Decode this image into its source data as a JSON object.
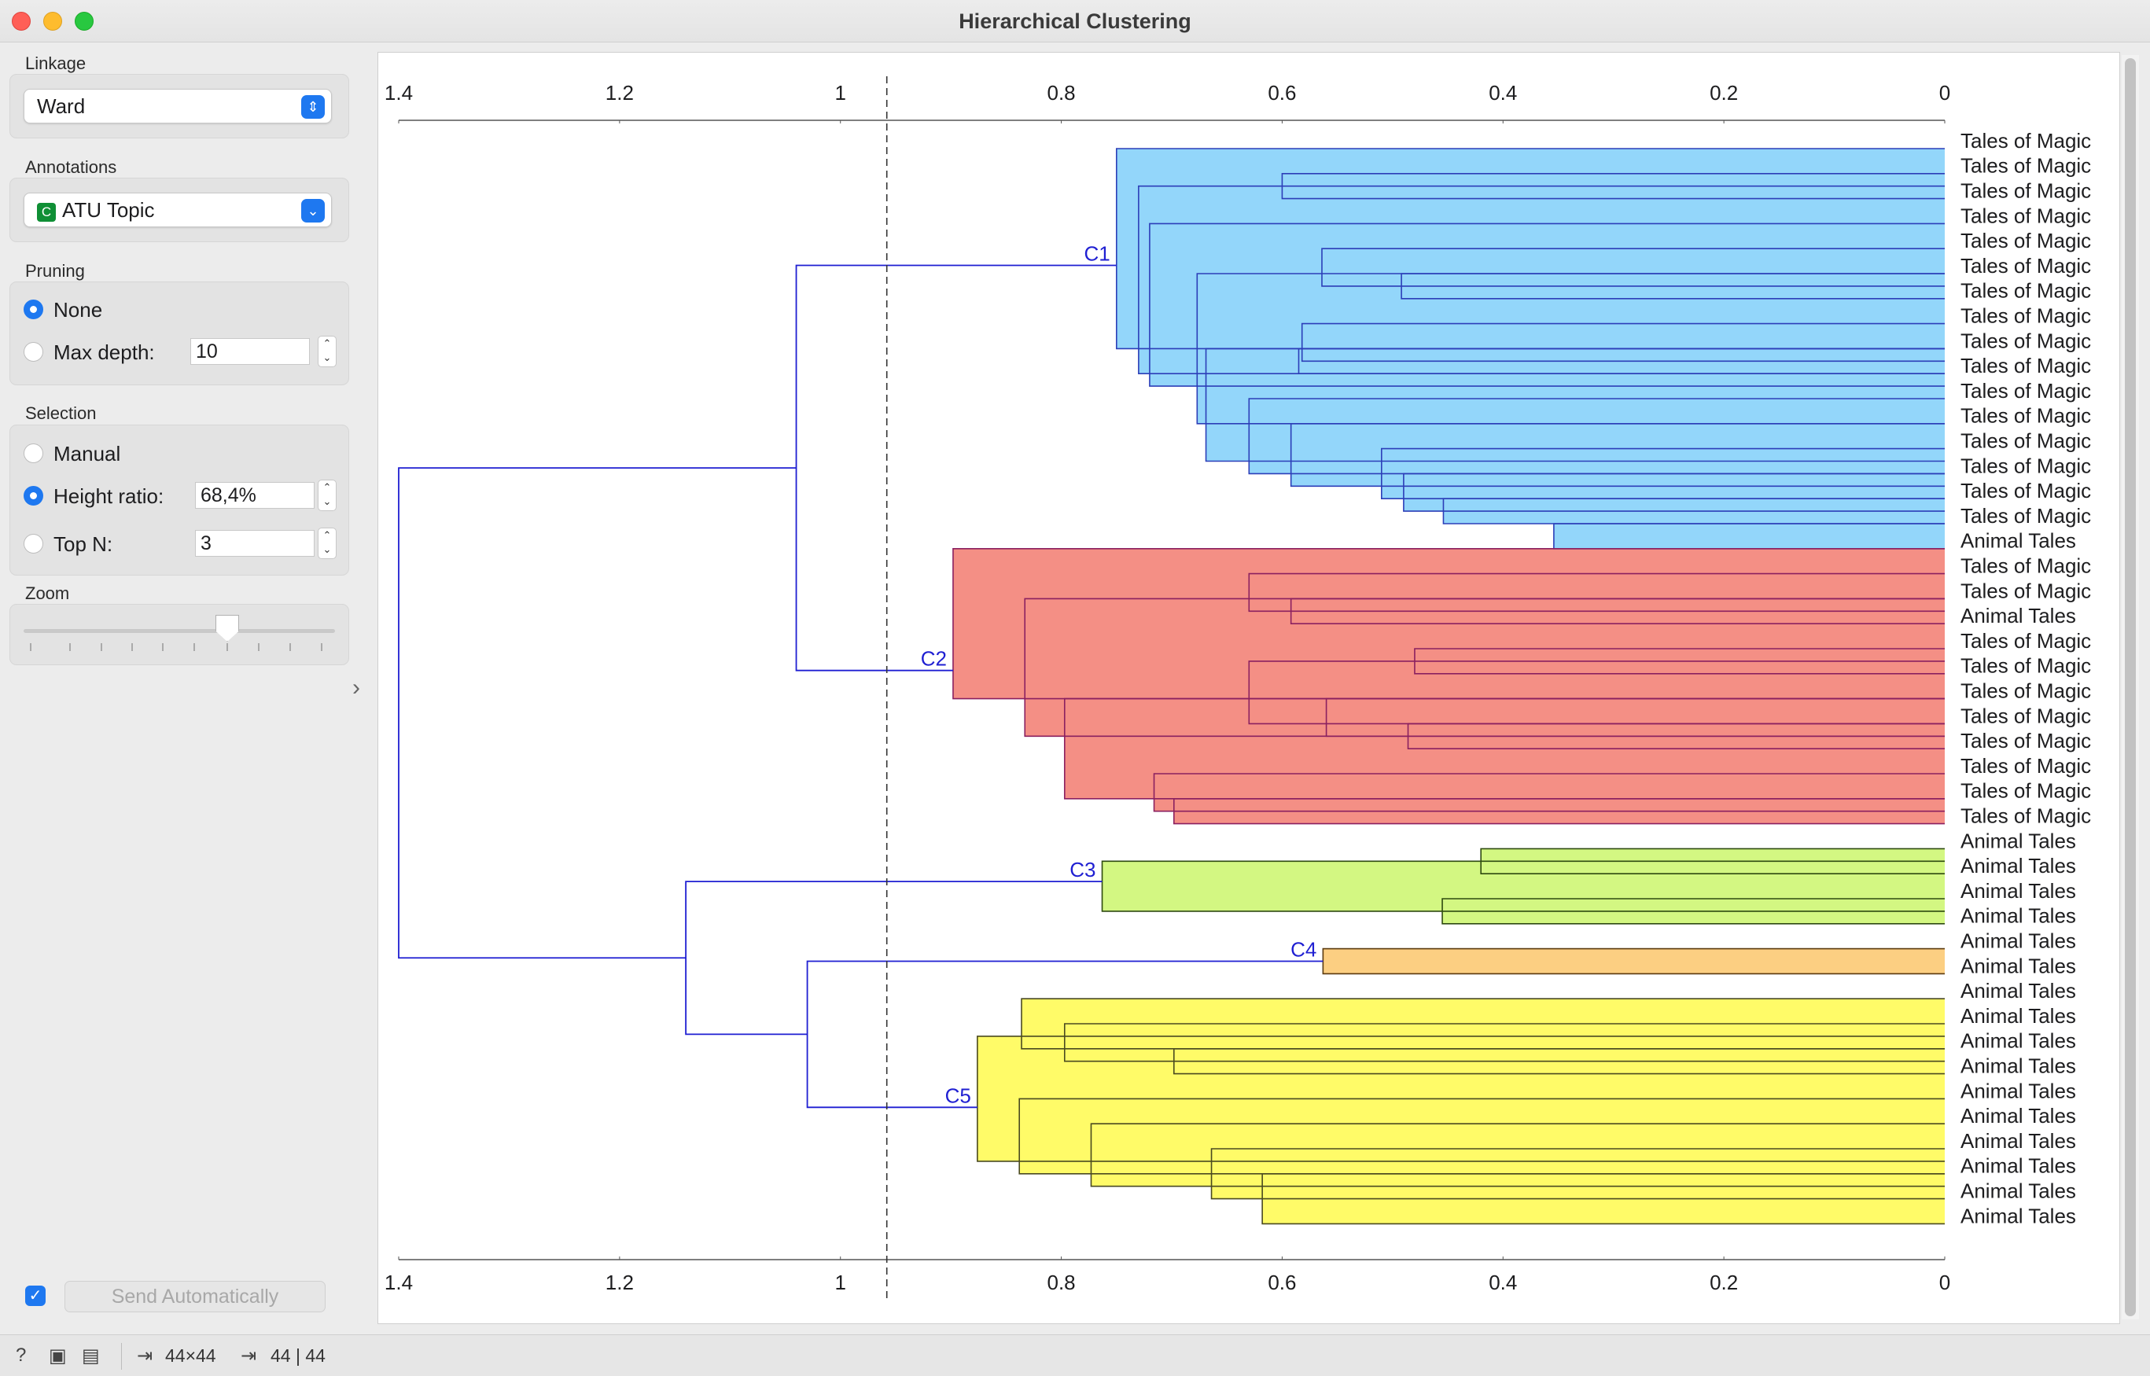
{
  "window": {
    "title": "Hierarchical Clustering"
  },
  "linkage": {
    "label": "Linkage",
    "value": "Ward"
  },
  "annotations": {
    "label": "Annotations",
    "badge": "C",
    "value": "ATU Topic"
  },
  "pruning": {
    "label": "Pruning",
    "none_label": "None",
    "max_depth_label": "Max depth:",
    "max_depth_value": "10",
    "selected": "None"
  },
  "selection": {
    "label": "Selection",
    "manual_label": "Manual",
    "height_ratio_label": "Height ratio:",
    "height_ratio_value": "68,4%",
    "top_n_label": "Top N:",
    "top_n_value": "3",
    "selected": "Height ratio"
  },
  "zoom": {
    "label": "Zoom",
    "value": 0.65
  },
  "send": {
    "label": "Send Automatically",
    "checked": true
  },
  "status": {
    "input_size": "44×44",
    "output_size": "44 | 44"
  },
  "chart_data": {
    "type": "dendrogram",
    "x_axis_ticks": [
      "1.4",
      "1.2",
      "1",
      "0.8",
      "0.6",
      "0.4",
      "0.2",
      "0"
    ],
    "xlim": [
      1.4,
      0
    ],
    "cutoff_height": 0.958,
    "leaves": [
      "Tales of Magic",
      "Tales of Magic",
      "Tales of Magic",
      "Tales of Magic",
      "Tales of Magic",
      "Tales of Magic",
      "Tales of Magic",
      "Tales of Magic",
      "Tales of Magic",
      "Tales of Magic",
      "Tales of Magic",
      "Tales of Magic",
      "Tales of Magic",
      "Tales of Magic",
      "Tales of Magic",
      "Tales of Magic",
      "Animal Tales",
      "Tales of Magic",
      "Tales of Magic",
      "Animal Tales",
      "Tales of Magic",
      "Tales of Magic",
      "Tales of Magic",
      "Tales of Magic",
      "Tales of Magic",
      "Tales of Magic",
      "Tales of Magic",
      "Tales of Magic",
      "Animal Tales",
      "Animal Tales",
      "Animal Tales",
      "Animal Tales",
      "Animal Tales",
      "Animal Tales",
      "Animal Tales",
      "Animal Tales",
      "Animal Tales",
      "Animal Tales",
      "Animal Tales",
      "Animal Tales",
      "Animal Tales",
      "Animal Tales",
      "Animal Tales",
      "Animal Tales"
    ],
    "clusters": [
      {
        "name": "C1",
        "first": 0,
        "last": 15,
        "height": 0.75,
        "color": "#93d6fa",
        "line": "#2c3eb8"
      },
      {
        "name": "C2",
        "first": 16,
        "last": 27,
        "height": 0.898,
        "color": "#f48f85",
        "line": "#8a2060"
      },
      {
        "name": "C3",
        "first": 28,
        "last": 31,
        "height": 0.763,
        "color": "#d3f782",
        "line": "#2e4a10"
      },
      {
        "name": "C4",
        "first": 32,
        "last": 33,
        "height": 0.563,
        "color": "#fccf82",
        "line": "#5a3a10"
      },
      {
        "name": "C5",
        "first": 34,
        "last": 43,
        "height": 0.876,
        "color": "#fffb68",
        "line": "#4a4a20"
      }
    ],
    "merges": [
      {
        "leaves": [
          0,
          15
        ],
        "height": 0.75,
        "top_y": 0,
        "bot": [
          1,
          15
        ],
        "color": "c0"
      },
      {
        "leaves": [
          1,
          2
        ],
        "height": 0.6,
        "color": "c0"
      },
      {
        "leaves": [
          1,
          15
        ],
        "height": 0.73,
        "top": [
          1,
          2
        ],
        "bot": [
          3,
          15
        ],
        "color": "c0"
      },
      {
        "leaves": [
          3,
          15
        ],
        "height": 0.72,
        "top": [
          3,
          3
        ],
        "bot": [
          4,
          15
        ],
        "color": "c0"
      },
      {
        "leaves": [
          4,
          6
        ],
        "height": 0.564,
        "top": [
          4,
          4
        ],
        "bot": [
          5,
          6
        ],
        "color": "c0"
      },
      {
        "leaves": [
          5,
          6
        ],
        "height": 0.492,
        "color": "c0"
      },
      {
        "leaves": [
          4,
          15
        ],
        "height": 0.677,
        "top": [
          4,
          6
        ],
        "bot": [
          7,
          15
        ],
        "color": "c0"
      },
      {
        "leaves": [
          7,
          15
        ],
        "height": 0.669,
        "top": [
          7,
          9
        ],
        "bot": [
          10,
          15
        ],
        "color": "c0"
      },
      {
        "leaves": [
          7,
          9
        ],
        "height": 0.582,
        "top": [
          7,
          7
        ],
        "bot": [
          8,
          9
        ],
        "color": "c0"
      },
      {
        "leaves": [
          8,
          9
        ],
        "height": 0.585,
        "color": "c0"
      },
      {
        "leaves": [
          10,
          15
        ],
        "height": 0.63,
        "top": [
          10,
          10
        ],
        "bot": [
          11,
          15
        ],
        "color": "c0"
      },
      {
        "leaves": [
          11,
          15
        ],
        "height": 0.592,
        "top": [
          11,
          11
        ],
        "bot": [
          12,
          15
        ],
        "color": "c0"
      },
      {
        "leaves": [
          12,
          15
        ],
        "height": 0.51,
        "top": [
          12,
          12
        ],
        "bot": [
          13,
          15
        ],
        "color": "c0"
      },
      {
        "leaves": [
          13,
          15
        ],
        "height": 0.49,
        "top": [
          13,
          13
        ],
        "bot": [
          14,
          15
        ],
        "color": "c0"
      },
      {
        "leaves": [
          14,
          15
        ],
        "height": 0.454,
        "top": [
          14,
          14
        ],
        "bot": [
          15,
          15
        ],
        "color": "c0"
      },
      {
        "leaves": [
          15,
          16
        ],
        "height": 0.354,
        "color": "c0"
      },
      {
        "leaves": [
          16,
          27
        ],
        "height": 0.898,
        "top": [
          16,
          16
        ],
        "bot": [
          17,
          27
        ],
        "color": "c1"
      },
      {
        "leaves": [
          17,
          27
        ],
        "height": 0.833,
        "top": [
          17,
          19
        ],
        "bot": [
          20,
          27
        ],
        "color": "c1"
      },
      {
        "leaves": [
          17,
          19
        ],
        "height": 0.63,
        "top": [
          17,
          17
        ],
        "bot": [
          18,
          19
        ],
        "color": "c1"
      },
      {
        "leaves": [
          18,
          19
        ],
        "height": 0.592,
        "color": "c1"
      },
      {
        "leaves": [
          20,
          27
        ],
        "height": 0.797,
        "top": [
          20,
          24
        ],
        "bot": [
          25,
          27
        ],
        "color": "c1"
      },
      {
        "leaves": [
          20,
          24
        ],
        "height": 0.63,
        "top": [
          20,
          21
        ],
        "bot": [
          22,
          24
        ],
        "color": "c1"
      },
      {
        "leaves": [
          20,
          21
        ],
        "height": 0.48,
        "color": "c1"
      },
      {
        "leaves": [
          22,
          24
        ],
        "height": 0.56,
        "top": [
          22,
          22
        ],
        "bot": [
          23,
          24
        ],
        "color": "c1"
      },
      {
        "leaves": [
          23,
          24
        ],
        "height": 0.486,
        "color": "c1"
      },
      {
        "leaves": [
          25,
          27
        ],
        "height": 0.716,
        "top": [
          25,
          25
        ],
        "bot": [
          26,
          27
        ],
        "color": "c1"
      },
      {
        "leaves": [
          26,
          27
        ],
        "height": 0.698,
        "color": "c1"
      },
      {
        "leaves": [
          28,
          31
        ],
        "height": 0.763,
        "top": [
          28,
          29
        ],
        "bot": [
          30,
          31
        ],
        "color": "c2"
      },
      {
        "leaves": [
          28,
          29
        ],
        "height": 0.42,
        "color": "c2"
      },
      {
        "leaves": [
          30,
          31
        ],
        "height": 0.455,
        "color": "c2"
      },
      {
        "leaves": [
          32,
          33
        ],
        "height": 0.563,
        "color": "c3"
      },
      {
        "leaves": [
          34,
          43
        ],
        "height": 0.876,
        "top": [
          34,
          37
        ],
        "bot": [
          38,
          43
        ],
        "color": "c4"
      },
      {
        "leaves": [
          34,
          37
        ],
        "height": 0.836,
        "top": [
          34,
          34
        ],
        "bot": [
          35,
          37
        ],
        "color": "c4"
      },
      {
        "leaves": [
          35,
          37
        ],
        "height": 0.797,
        "top": [
          35,
          35
        ],
        "bot": [
          36,
          37
        ],
        "color": "c4"
      },
      {
        "leaves": [
          36,
          37
        ],
        "height": 0.698,
        "color": "c4"
      },
      {
        "leaves": [
          38,
          43
        ],
        "height": 0.838,
        "top": [
          38,
          38
        ],
        "bot": [
          39,
          43
        ],
        "color": "c4"
      },
      {
        "leaves": [
          39,
          43
        ],
        "height": 0.773,
        "top": [
          39,
          39
        ],
        "bot": [
          40,
          43
        ],
        "color": "c4"
      },
      {
        "leaves": [
          40,
          43
        ],
        "height": 0.664,
        "top": [
          40,
          40
        ],
        "bot": [
          41,
          43
        ],
        "color": "c4"
      },
      {
        "leaves": [
          41,
          43
        ],
        "height": 0.618,
        "color": "c4"
      }
    ],
    "upper_links": [
      {
        "name": "C1+C2",
        "height": 1.04
      },
      {
        "name": "C4+C5",
        "height": 1.03
      },
      {
        "name": "C3+(C4+C5)",
        "height": 1.14
      },
      {
        "name": "root",
        "height": 1.4
      }
    ]
  }
}
